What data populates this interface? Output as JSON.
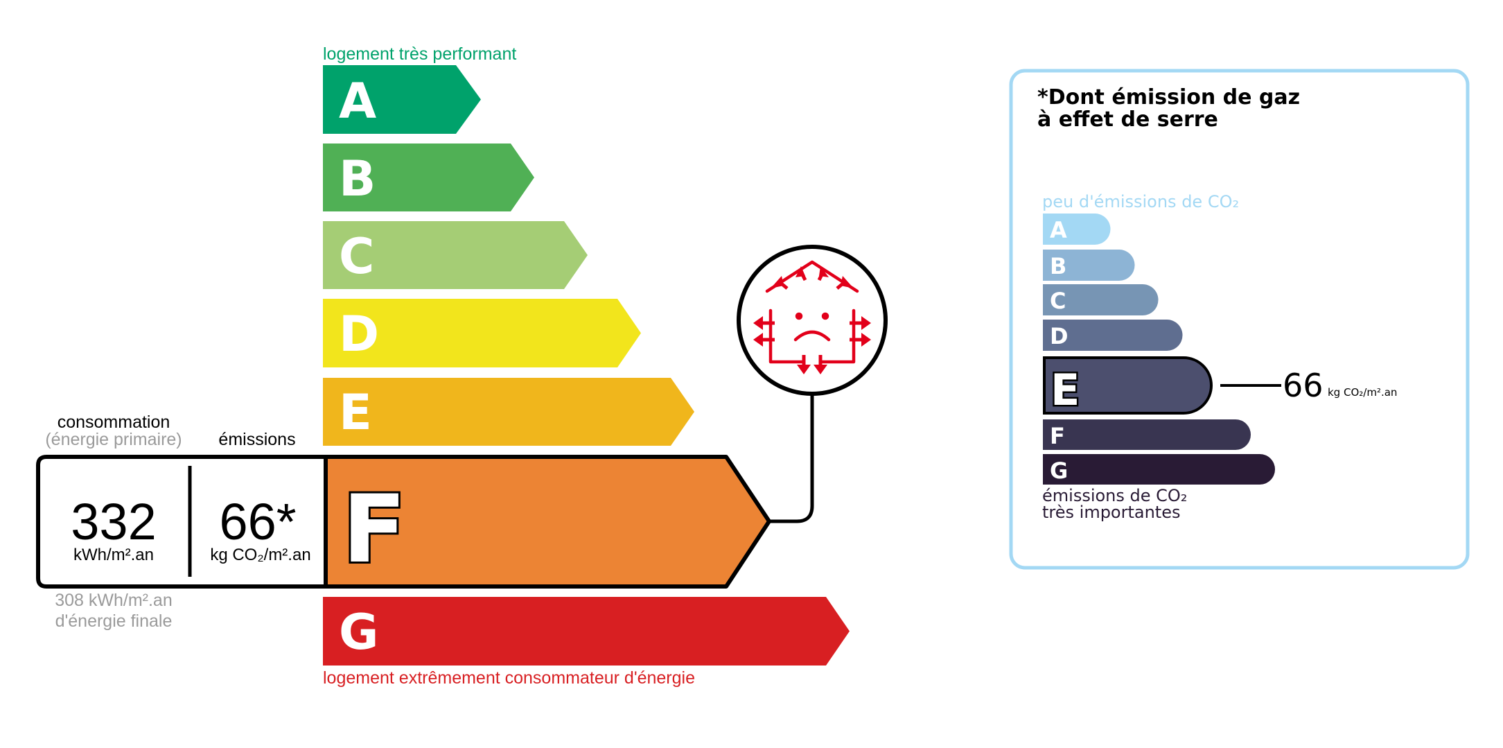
{
  "energy": {
    "top_label": "logement très performant",
    "bottom_label": "logement extrêmement consommateur d'énergie",
    "classes": [
      {
        "letter": "A",
        "color": "#00A26B"
      },
      {
        "letter": "B",
        "color": "#50B055"
      },
      {
        "letter": "C",
        "color": "#A5CD75"
      },
      {
        "letter": "D",
        "color": "#F2E51C"
      },
      {
        "letter": "E",
        "color": "#F0B61C"
      },
      {
        "letter": "F",
        "color": "#EC8434"
      },
      {
        "letter": "G",
        "color": "#D81F22"
      }
    ],
    "current_class": "F",
    "consumption_label": "consommation",
    "consumption_sublabel": "(énergie primaire)",
    "emissions_label": "émissions",
    "consumption_value": "332",
    "consumption_unit": "kWh/m².an",
    "emissions_value": "66*",
    "emissions_unit": "kg CO₂/m².an",
    "final_energy_value": "308 kWh/m².an",
    "final_energy_label": "d'énergie finale",
    "badge_icon": "house-heat-loss-sad-icon",
    "badge_color": "#E2001A"
  },
  "ghg": {
    "title_line1": "*Dont émission de gaz",
    "title_line2": "à effet de serre",
    "top_label": "peu d'émissions de CO₂",
    "bottom_label_line1": "émissions de CO₂",
    "bottom_label_line2": "très importantes",
    "classes": [
      {
        "letter": "A",
        "color": "#A3D8F4"
      },
      {
        "letter": "B",
        "color": "#8DB4D5"
      },
      {
        "letter": "C",
        "color": "#7795B4"
      },
      {
        "letter": "D",
        "color": "#5F6E90"
      },
      {
        "letter": "E",
        "color": "#4C4F6E"
      },
      {
        "letter": "F",
        "color": "#393551"
      },
      {
        "letter": "G",
        "color": "#291B35"
      }
    ],
    "current_class": "E",
    "value": "66",
    "unit": "kg CO₂/m².an",
    "border_color": "#A3D8F4"
  }
}
